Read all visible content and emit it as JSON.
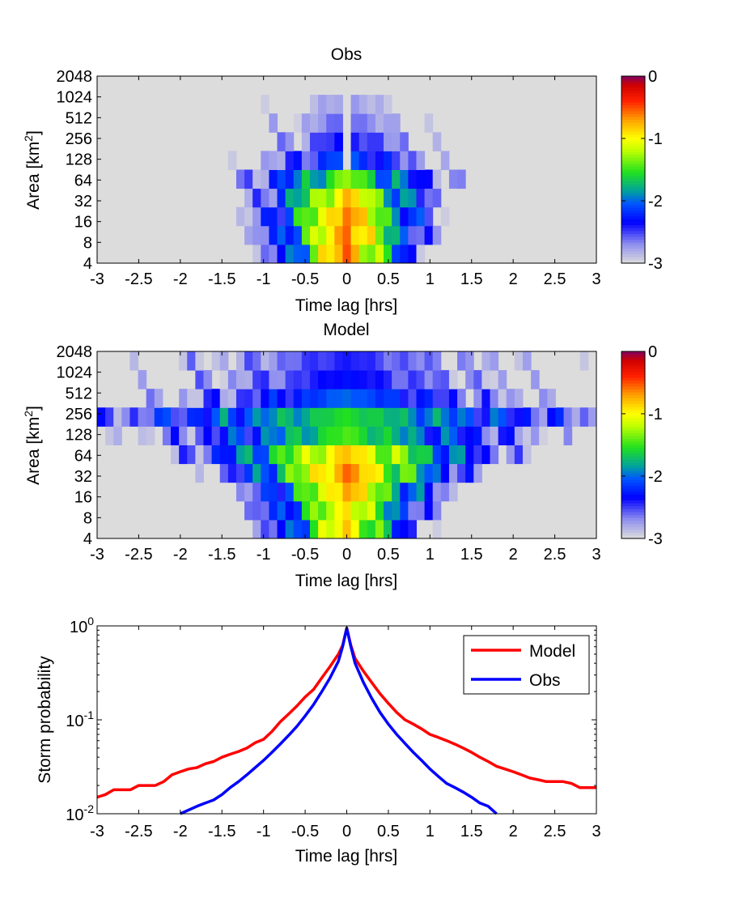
{
  "chart_data": [
    {
      "type": "heatmap",
      "title": "Obs",
      "xlabel": "Time lag [hrs]",
      "ylabel_main": "Area [km",
      "ylabel_sup": "2",
      "ylabel_end": "]",
      "xlim": [
        -3,
        3
      ],
      "x_ticks": [
        "-3",
        "-2.5",
        "-2",
        "-1.5",
        "-1",
        "-0.5",
        "0",
        "0.5",
        "1",
        "1.5",
        "2",
        "2.5",
        "3"
      ],
      "y_ticks": [
        "4",
        "8",
        "16",
        "32",
        "64",
        "128",
        "256",
        "512",
        "1024",
        "2048"
      ],
      "colorbar": {
        "ticks": [
          "0",
          "-1",
          "-2",
          "-3"
        ],
        "range": [
          -3,
          0
        ],
        "colormap": "jet-to-lightgray"
      },
      "background": "#dcdcdc",
      "rows": [
        {
          "area": "4",
          "center": 0.0,
          "peak": -0.5,
          "spread": 0.22,
          "extent": 1.35,
          "asym": 0.95
        },
        {
          "area": "8",
          "center": 0.0,
          "peak": -0.55,
          "spread": 0.25,
          "extent": 1.95,
          "asym": 0.95
        },
        {
          "area": "16",
          "center": 0.0,
          "peak": -0.6,
          "spread": 0.27,
          "extent": 2.0,
          "asym": 0.95
        },
        {
          "area": "32",
          "center": 0.0,
          "peak": -0.75,
          "spread": 0.3,
          "extent": 2.2,
          "asym": 1.0
        },
        {
          "area": "64",
          "center": 0.0,
          "peak": -1.3,
          "spread": 0.45,
          "extent": 2.3,
          "asym": 1.0
        },
        {
          "area": "128",
          "center": 0.0,
          "peak": -2.0,
          "spread": 0.6,
          "extent": 2.5,
          "asym": 1.0
        },
        {
          "area": "256",
          "center": 0.0,
          "peak": -2.3,
          "spread": 0.7,
          "extent": 2.6,
          "asym": 1.0
        },
        {
          "area": "512",
          "center": 0.0,
          "peak": -2.55,
          "spread": 0.9,
          "extent": 2.1,
          "asym": 1.0
        },
        {
          "area": "1024",
          "center": 0.0,
          "peak": -2.7,
          "spread": 1.0,
          "extent": 2.1,
          "asym": 1.0
        },
        {
          "area": "2048",
          "center": 0.0,
          "peak": -2.9,
          "spread": 0.8,
          "extent": 1.2,
          "asym": 1.0
        }
      ]
    },
    {
      "type": "heatmap",
      "title": "Model",
      "xlabel": "Time lag [hrs]",
      "ylabel_main": "Area [km",
      "ylabel_sup": "2",
      "ylabel_end": "]",
      "xlim": [
        -3,
        3
      ],
      "x_ticks": [
        "-3",
        "-2.5",
        "-2",
        "-1.5",
        "-1",
        "-0.5",
        "0",
        "0.5",
        "1",
        "1.5",
        "2",
        "2.5",
        "3"
      ],
      "y_ticks": [
        "4",
        "8",
        "16",
        "32",
        "64",
        "128",
        "256",
        "512",
        "1024",
        "2048"
      ],
      "colorbar": {
        "ticks": [
          "0",
          "-1",
          "-2",
          "-3"
        ],
        "range": [
          -3,
          0
        ],
        "colormap": "jet-to-lightgray"
      },
      "background": "#dcdcdc",
      "rows": [
        {
          "area": "4",
          "center": 0.0,
          "peak": -0.8,
          "spread": 0.25,
          "extent": 1.3,
          "asym": 0.9
        },
        {
          "area": "8",
          "center": 0.0,
          "peak": -0.9,
          "spread": 0.3,
          "extent": 1.8,
          "asym": 0.9
        },
        {
          "area": "16",
          "center": 0.0,
          "peak": -0.7,
          "spread": 0.32,
          "extent": 2.9,
          "asym": 1.0
        },
        {
          "area": "32",
          "center": 0.0,
          "peak": -0.55,
          "spread": 0.38,
          "extent": 2.9,
          "asym": 1.0
        },
        {
          "area": "64",
          "center": 0.0,
          "peak": -0.8,
          "spread": 0.55,
          "extent": 3.0,
          "asym": 1.0
        },
        {
          "area": "128",
          "center": 0.0,
          "peak": -1.45,
          "spread": 0.9,
          "extent": 3.0,
          "asym": 1.0
        },
        {
          "area": "256",
          "center": 0.0,
          "peak": -1.55,
          "spread": 1.4,
          "extent": 3.0,
          "asym": 1.0
        },
        {
          "area": "512",
          "center": 0.0,
          "peak": -2.0,
          "spread": 1.3,
          "extent": 3.0,
          "asym": 1.0
        },
        {
          "area": "1024",
          "center": 0.0,
          "peak": -2.3,
          "spread": 1.6,
          "extent": 3.0,
          "asym": 1.0
        },
        {
          "area": "2048",
          "center": 0.0,
          "peak": -2.4,
          "spread": 1.8,
          "extent": 3.0,
          "asym": 1.0
        }
      ]
    },
    {
      "type": "line",
      "xlabel": "Time lag [hrs]",
      "ylabel": "Storm probability",
      "xlim": [
        -3,
        3
      ],
      "ylim": [
        0.01,
        1
      ],
      "yscale": "log",
      "x_ticks": [
        "-3",
        "-2.5",
        "-2",
        "-1.5",
        "-1",
        "-0.5",
        "0",
        "0.5",
        "1",
        "1.5",
        "2",
        "2.5",
        "3"
      ],
      "y_ticks": [
        {
          "value": 1,
          "base": "10",
          "exp": "0"
        },
        {
          "value": 0.1,
          "base": "10",
          "exp": "-1"
        },
        {
          "value": 0.01,
          "base": "10",
          "exp": "-2"
        }
      ],
      "legend_position": "top-right",
      "series": [
        {
          "name": "Model",
          "color": "#ff0000",
          "x": [
            -3.0,
            -2.9,
            -2.8,
            -2.6,
            -2.5,
            -2.3,
            -2.2,
            -2.1,
            -2.0,
            -1.9,
            -1.8,
            -1.7,
            -1.6,
            -1.5,
            -1.4,
            -1.3,
            -1.2,
            -1.1,
            -1.0,
            -0.9,
            -0.8,
            -0.7,
            -0.6,
            -0.5,
            -0.4,
            -0.3,
            -0.2,
            -0.1,
            -0.05,
            0.0,
            0.05,
            0.1,
            0.2,
            0.3,
            0.4,
            0.5,
            0.6,
            0.7,
            0.8,
            0.9,
            1.0,
            1.1,
            1.2,
            1.3,
            1.4,
            1.5,
            1.6,
            1.7,
            1.8,
            1.9,
            2.0,
            2.1,
            2.2,
            2.3,
            2.4,
            2.5,
            2.6,
            2.7,
            2.8,
            2.9,
            3.0
          ],
          "y": [
            0.015,
            0.016,
            0.018,
            0.018,
            0.02,
            0.02,
            0.022,
            0.026,
            0.028,
            0.03,
            0.031,
            0.034,
            0.036,
            0.04,
            0.043,
            0.046,
            0.05,
            0.057,
            0.062,
            0.075,
            0.095,
            0.115,
            0.14,
            0.175,
            0.21,
            0.28,
            0.37,
            0.5,
            0.62,
            0.95,
            0.62,
            0.45,
            0.33,
            0.25,
            0.19,
            0.15,
            0.12,
            0.1,
            0.09,
            0.08,
            0.07,
            0.065,
            0.06,
            0.055,
            0.05,
            0.045,
            0.04,
            0.036,
            0.032,
            0.03,
            0.028,
            0.026,
            0.024,
            0.023,
            0.022,
            0.022,
            0.022,
            0.021,
            0.019,
            0.019,
            0.019
          ]
        },
        {
          "name": "Obs",
          "color": "#0000ff",
          "x": [
            -2.0,
            -1.8,
            -1.7,
            -1.6,
            -1.5,
            -1.4,
            -1.3,
            -1.2,
            -1.1,
            -1.0,
            -0.9,
            -0.8,
            -0.7,
            -0.6,
            -0.5,
            -0.4,
            -0.3,
            -0.2,
            -0.1,
            -0.05,
            0.0,
            0.05,
            0.1,
            0.2,
            0.3,
            0.4,
            0.5,
            0.6,
            0.7,
            0.8,
            0.9,
            1.0,
            1.1,
            1.2,
            1.3,
            1.4,
            1.5,
            1.6,
            1.7,
            1.8
          ],
          "y": [
            0.01,
            0.012,
            0.013,
            0.014,
            0.016,
            0.019,
            0.022,
            0.026,
            0.031,
            0.037,
            0.045,
            0.055,
            0.068,
            0.085,
            0.11,
            0.145,
            0.2,
            0.28,
            0.42,
            0.6,
            0.95,
            0.6,
            0.4,
            0.25,
            0.17,
            0.12,
            0.09,
            0.07,
            0.056,
            0.045,
            0.037,
            0.03,
            0.025,
            0.021,
            0.019,
            0.017,
            0.015,
            0.013,
            0.012,
            0.01
          ]
        }
      ]
    }
  ]
}
